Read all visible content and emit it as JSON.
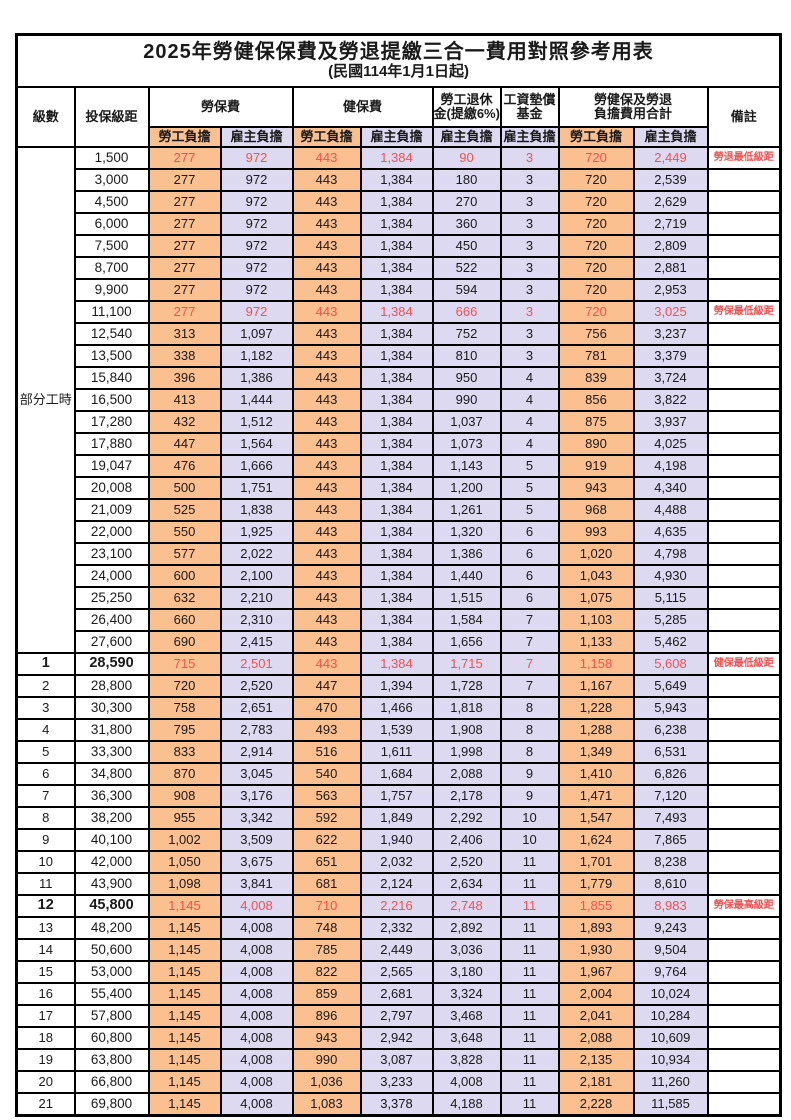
{
  "title": "2025年勞健保保費及勞退提繳三合一費用對照參考用表",
  "subtitle": "(民國114年1月1日起)",
  "colors": {
    "employee_column_bg": "#FAC090",
    "employer_column_bg": "#DCD9F0",
    "highlight_text": "#F4504F",
    "border": "#000000"
  },
  "header": {
    "level": "級數",
    "bracket": "投保級距",
    "labor_insurance": "勞保費",
    "health_insurance": "健保費",
    "pension_line1": "勞工退休",
    "pension_line2": "金(提繳6%)",
    "wage_fund_line1": "工資墊償",
    "wage_fund_line2": "基金",
    "total_line1": "勞健保及勞退",
    "total_line2": "負擔費用合計",
    "employee": "勞工負擔",
    "employer": "雇主負擔",
    "remark": "備註"
  },
  "part_time": {
    "label": "部分工時",
    "span": 23
  },
  "rows": [
    {
      "level": "",
      "bracket": "1,500",
      "values": [
        "277",
        "972",
        "443",
        "1,384",
        "90",
        "3",
        "720",
        "2,449"
      ],
      "remark": "勞退最低級距",
      "highlight": true
    },
    {
      "level": "",
      "bracket": "3,000",
      "values": [
        "277",
        "972",
        "443",
        "1,384",
        "180",
        "3",
        "720",
        "2,539"
      ],
      "remark": ""
    },
    {
      "level": "",
      "bracket": "4,500",
      "values": [
        "277",
        "972",
        "443",
        "1,384",
        "270",
        "3",
        "720",
        "2,629"
      ],
      "remark": ""
    },
    {
      "level": "",
      "bracket": "6,000",
      "values": [
        "277",
        "972",
        "443",
        "1,384",
        "360",
        "3",
        "720",
        "2,719"
      ],
      "remark": ""
    },
    {
      "level": "",
      "bracket": "7,500",
      "values": [
        "277",
        "972",
        "443",
        "1,384",
        "450",
        "3",
        "720",
        "2,809"
      ],
      "remark": ""
    },
    {
      "level": "",
      "bracket": "8,700",
      "values": [
        "277",
        "972",
        "443",
        "1,384",
        "522",
        "3",
        "720",
        "2,881"
      ],
      "remark": ""
    },
    {
      "level": "",
      "bracket": "9,900",
      "values": [
        "277",
        "972",
        "443",
        "1,384",
        "594",
        "3",
        "720",
        "2,953"
      ],
      "remark": ""
    },
    {
      "level": "",
      "bracket": "11,100",
      "values": [
        "277",
        "972",
        "443",
        "1,384",
        "666",
        "3",
        "720",
        "3,025"
      ],
      "remark": "勞保最低級距",
      "highlight": true
    },
    {
      "level": "",
      "bracket": "12,540",
      "values": [
        "313",
        "1,097",
        "443",
        "1,384",
        "752",
        "3",
        "756",
        "3,237"
      ],
      "remark": ""
    },
    {
      "level": "",
      "bracket": "13,500",
      "values": [
        "338",
        "1,182",
        "443",
        "1,384",
        "810",
        "3",
        "781",
        "3,379"
      ],
      "remark": ""
    },
    {
      "level": "",
      "bracket": "15,840",
      "values": [
        "396",
        "1,386",
        "443",
        "1,384",
        "950",
        "4",
        "839",
        "3,724"
      ],
      "remark": ""
    },
    {
      "level": "",
      "bracket": "16,500",
      "values": [
        "413",
        "1,444",
        "443",
        "1,384",
        "990",
        "4",
        "856",
        "3,822"
      ],
      "remark": ""
    },
    {
      "level": "",
      "bracket": "17,280",
      "values": [
        "432",
        "1,512",
        "443",
        "1,384",
        "1,037",
        "4",
        "875",
        "3,937"
      ],
      "remark": ""
    },
    {
      "level": "",
      "bracket": "17,880",
      "values": [
        "447",
        "1,564",
        "443",
        "1,384",
        "1,073",
        "4",
        "890",
        "4,025"
      ],
      "remark": ""
    },
    {
      "level": "",
      "bracket": "19,047",
      "values": [
        "476",
        "1,666",
        "443",
        "1,384",
        "1,143",
        "5",
        "919",
        "4,198"
      ],
      "remark": ""
    },
    {
      "level": "",
      "bracket": "20,008",
      "values": [
        "500",
        "1,751",
        "443",
        "1,384",
        "1,200",
        "5",
        "943",
        "4,340"
      ],
      "remark": ""
    },
    {
      "level": "",
      "bracket": "21,009",
      "values": [
        "525",
        "1,838",
        "443",
        "1,384",
        "1,261",
        "5",
        "968",
        "4,488"
      ],
      "remark": ""
    },
    {
      "level": "",
      "bracket": "22,000",
      "values": [
        "550",
        "1,925",
        "443",
        "1,384",
        "1,320",
        "6",
        "993",
        "4,635"
      ],
      "remark": ""
    },
    {
      "level": "",
      "bracket": "23,100",
      "values": [
        "577",
        "2,022",
        "443",
        "1,384",
        "1,386",
        "6",
        "1,020",
        "4,798"
      ],
      "remark": ""
    },
    {
      "level": "",
      "bracket": "24,000",
      "values": [
        "600",
        "2,100",
        "443",
        "1,384",
        "1,440",
        "6",
        "1,043",
        "4,930"
      ],
      "remark": ""
    },
    {
      "level": "",
      "bracket": "25,250",
      "values": [
        "632",
        "2,210",
        "443",
        "1,384",
        "1,515",
        "6",
        "1,075",
        "5,115"
      ],
      "remark": ""
    },
    {
      "level": "",
      "bracket": "26,400",
      "values": [
        "660",
        "2,310",
        "443",
        "1,384",
        "1,584",
        "7",
        "1,103",
        "5,285"
      ],
      "remark": ""
    },
    {
      "level": "",
      "bracket": "27,600",
      "values": [
        "690",
        "2,415",
        "443",
        "1,384",
        "1,656",
        "7",
        "1,133",
        "5,462"
      ],
      "remark": ""
    },
    {
      "level": "1",
      "bracket": "28,590",
      "values": [
        "715",
        "2,501",
        "443",
        "1,384",
        "1,715",
        "7",
        "1,158",
        "5,608"
      ],
      "remark": "健保最低級距",
      "highlight": true,
      "bold": true
    },
    {
      "level": "2",
      "bracket": "28,800",
      "values": [
        "720",
        "2,520",
        "447",
        "1,394",
        "1,728",
        "7",
        "1,167",
        "5,649"
      ],
      "remark": ""
    },
    {
      "level": "3",
      "bracket": "30,300",
      "values": [
        "758",
        "2,651",
        "470",
        "1,466",
        "1,818",
        "8",
        "1,228",
        "5,943"
      ],
      "remark": ""
    },
    {
      "level": "4",
      "bracket": "31,800",
      "values": [
        "795",
        "2,783",
        "493",
        "1,539",
        "1,908",
        "8",
        "1,288",
        "6,238"
      ],
      "remark": ""
    },
    {
      "level": "5",
      "bracket": "33,300",
      "values": [
        "833",
        "2,914",
        "516",
        "1,611",
        "1,998",
        "8",
        "1,349",
        "6,531"
      ],
      "remark": ""
    },
    {
      "level": "6",
      "bracket": "34,800",
      "values": [
        "870",
        "3,045",
        "540",
        "1,684",
        "2,088",
        "9",
        "1,410",
        "6,826"
      ],
      "remark": ""
    },
    {
      "level": "7",
      "bracket": "36,300",
      "values": [
        "908",
        "3,176",
        "563",
        "1,757",
        "2,178",
        "9",
        "1,471",
        "7,120"
      ],
      "remark": ""
    },
    {
      "level": "8",
      "bracket": "38,200",
      "values": [
        "955",
        "3,342",
        "592",
        "1,849",
        "2,292",
        "10",
        "1,547",
        "7,493"
      ],
      "remark": ""
    },
    {
      "level": "9",
      "bracket": "40,100",
      "values": [
        "1,002",
        "3,509",
        "622",
        "1,940",
        "2,406",
        "10",
        "1,624",
        "7,865"
      ],
      "remark": ""
    },
    {
      "level": "10",
      "bracket": "42,000",
      "values": [
        "1,050",
        "3,675",
        "651",
        "2,032",
        "2,520",
        "11",
        "1,701",
        "8,238"
      ],
      "remark": ""
    },
    {
      "level": "11",
      "bracket": "43,900",
      "values": [
        "1,098",
        "3,841",
        "681",
        "2,124",
        "2,634",
        "11",
        "1,779",
        "8,610"
      ],
      "remark": ""
    },
    {
      "level": "12",
      "bracket": "45,800",
      "values": [
        "1,145",
        "4,008",
        "710",
        "2,216",
        "2,748",
        "11",
        "1,855",
        "8,983"
      ],
      "remark": "勞保最高級距",
      "highlight": true,
      "bold": true
    },
    {
      "level": "13",
      "bracket": "48,200",
      "values": [
        "1,145",
        "4,008",
        "748",
        "2,332",
        "2,892",
        "11",
        "1,893",
        "9,243"
      ],
      "remark": ""
    },
    {
      "level": "14",
      "bracket": "50,600",
      "values": [
        "1,145",
        "4,008",
        "785",
        "2,449",
        "3,036",
        "11",
        "1,930",
        "9,504"
      ],
      "remark": ""
    },
    {
      "level": "15",
      "bracket": "53,000",
      "values": [
        "1,145",
        "4,008",
        "822",
        "2,565",
        "3,180",
        "11",
        "1,967",
        "9,764"
      ],
      "remark": ""
    },
    {
      "level": "16",
      "bracket": "55,400",
      "values": [
        "1,145",
        "4,008",
        "859",
        "2,681",
        "3,324",
        "11",
        "2,004",
        "10,024"
      ],
      "remark": ""
    },
    {
      "level": "17",
      "bracket": "57,800",
      "values": [
        "1,145",
        "4,008",
        "896",
        "2,797",
        "3,468",
        "11",
        "2,041",
        "10,284"
      ],
      "remark": ""
    },
    {
      "level": "18",
      "bracket": "60,800",
      "values": [
        "1,145",
        "4,008",
        "943",
        "2,942",
        "3,648",
        "11",
        "2,088",
        "10,609"
      ],
      "remark": ""
    },
    {
      "level": "19",
      "bracket": "63,800",
      "values": [
        "1,145",
        "4,008",
        "990",
        "3,087",
        "3,828",
        "11",
        "2,135",
        "10,934"
      ],
      "remark": ""
    },
    {
      "level": "20",
      "bracket": "66,800",
      "values": [
        "1,145",
        "4,008",
        "1,036",
        "3,233",
        "4,008",
        "11",
        "2,181",
        "11,260"
      ],
      "remark": ""
    },
    {
      "level": "21",
      "bracket": "69,800",
      "values": [
        "1,145",
        "4,008",
        "1,083",
        "3,378",
        "4,188",
        "11",
        "2,228",
        "11,585"
      ],
      "remark": ""
    }
  ]
}
